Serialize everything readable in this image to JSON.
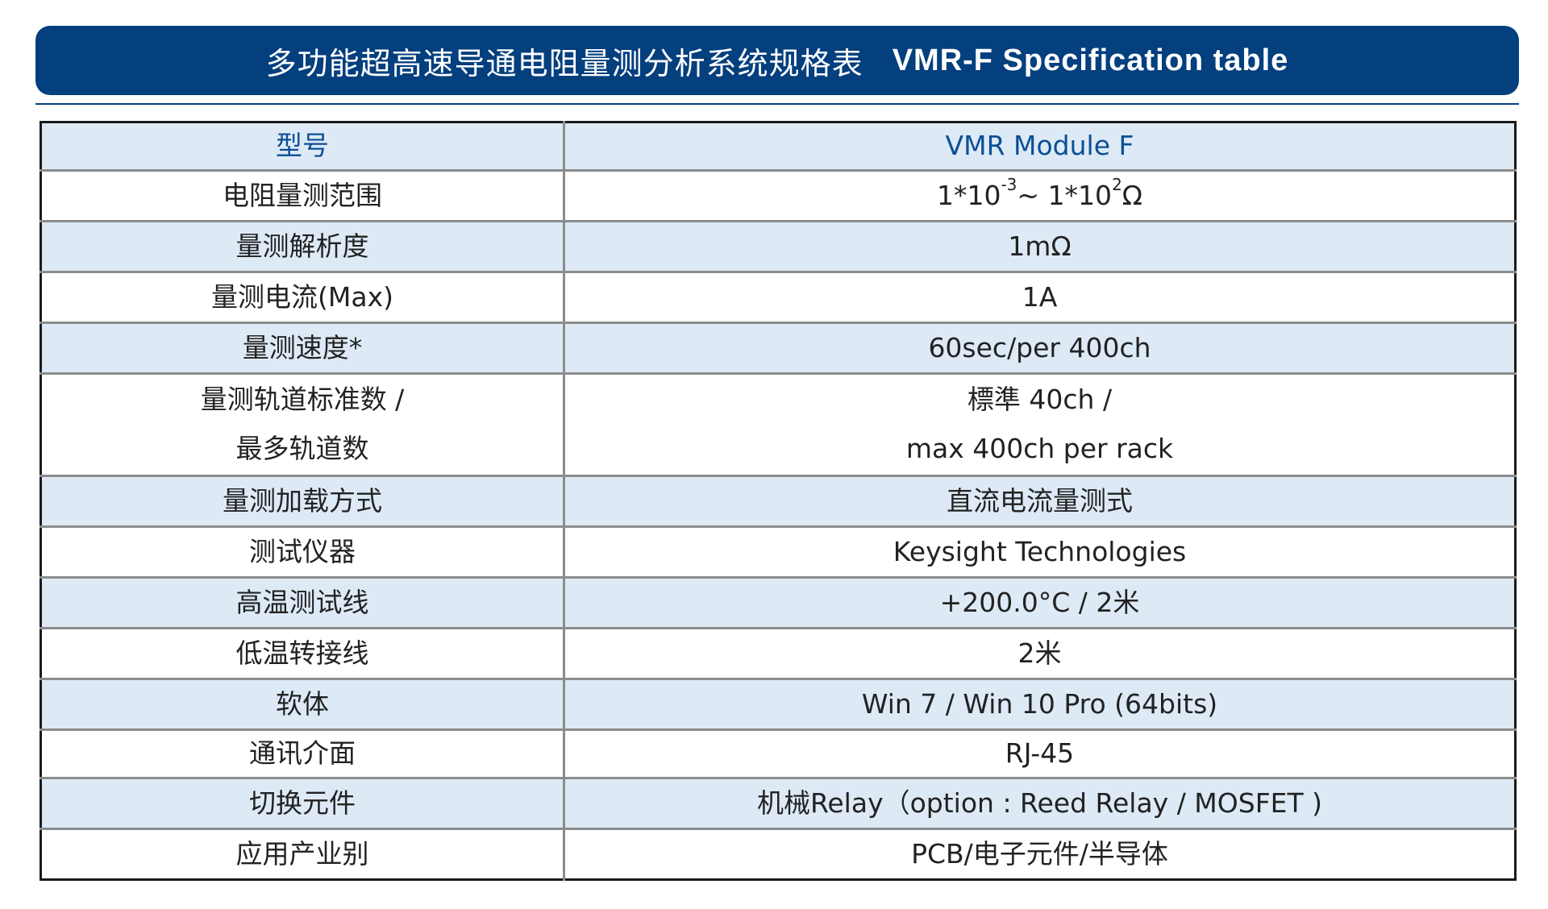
{
  "title": {
    "cn": "多功能超高速导通电阻量测分析系统规格表",
    "en": "VMR-F Specification table"
  },
  "table": {
    "header": {
      "label": "型号",
      "value": "VMR Module F"
    },
    "range_row": {
      "label": "电阻量测范围",
      "base1": "1*10",
      "exp1": "-3",
      "tilde": "~ ",
      "base2": "1*10",
      "exp2": "2",
      "unit": "Ω"
    },
    "rows": [
      {
        "label": "量测解析度",
        "value": "1mΩ"
      },
      {
        "label": "量测电流(Max)",
        "value": "1A"
      },
      {
        "label": "量测速度*",
        "value": "60sec/per 400ch"
      }
    ],
    "channels_row": {
      "label_line1": "量测轨道标准数 /",
      "label_line2": "最多轨道数",
      "value_line1": "標準 40ch /",
      "value_line2": "max 400ch per rack"
    },
    "rows2": [
      {
        "label": "量测加载方式",
        "value": "直流电流量测式"
      },
      {
        "label": "测试仪器",
        "value": "Keysight Technologies"
      },
      {
        "label": "高温测试线",
        "value": "+200.0°C / 2米"
      },
      {
        "label": "低温转接线",
        "value": "2米"
      },
      {
        "label": "软体",
        "value": "Win 7 / Win 10 Pro (64bits)"
      },
      {
        "label": "通讯介面",
        "value": "RJ-45"
      },
      {
        "label": "切换元件",
        "value": "机械Relay（option : Reed Relay / MOSFET )"
      },
      {
        "label": "应用产业别",
        "value": "PCB/电子元件/半导体"
      }
    ]
  },
  "colors": {
    "title_bg": "#043f7e",
    "row_shade": "#ddeaf6",
    "header_text": "#0c4f95"
  }
}
